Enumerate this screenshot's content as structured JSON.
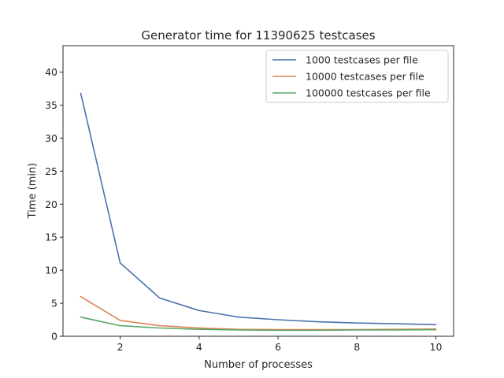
{
  "chart_data": {
    "type": "line",
    "title": "Generator time for 11390625 testcases",
    "xlabel": "Number of processes",
    "ylabel": "Time (min)",
    "x": [
      1,
      2,
      3,
      4,
      5,
      6,
      7,
      8,
      9,
      10
    ],
    "xlim": [
      0.55,
      10.45
    ],
    "ylim": [
      0,
      44
    ],
    "xticks": [
      2,
      4,
      6,
      8,
      10
    ],
    "yticks": [
      0,
      5,
      10,
      15,
      20,
      25,
      30,
      35,
      40
    ],
    "grid": false,
    "legend_position": "top-right",
    "series": [
      {
        "name": "1000 testcases per file",
        "color": "#4c72b0",
        "values": [
          36.8,
          11.1,
          5.8,
          3.9,
          2.9,
          2.5,
          2.2,
          2.0,
          1.9,
          1.75
        ]
      },
      {
        "name": "10000 testcases per file",
        "color": "#dd8452",
        "values": [
          6.0,
          2.4,
          1.6,
          1.25,
          1.05,
          1.0,
          1.0,
          1.0,
          1.05,
          1.1
        ]
      },
      {
        "name": "100000 testcases per file",
        "color": "#55a868",
        "values": [
          2.9,
          1.6,
          1.25,
          1.05,
          0.95,
          0.9,
          0.9,
          0.95,
          0.95,
          1.0
        ]
      }
    ]
  }
}
